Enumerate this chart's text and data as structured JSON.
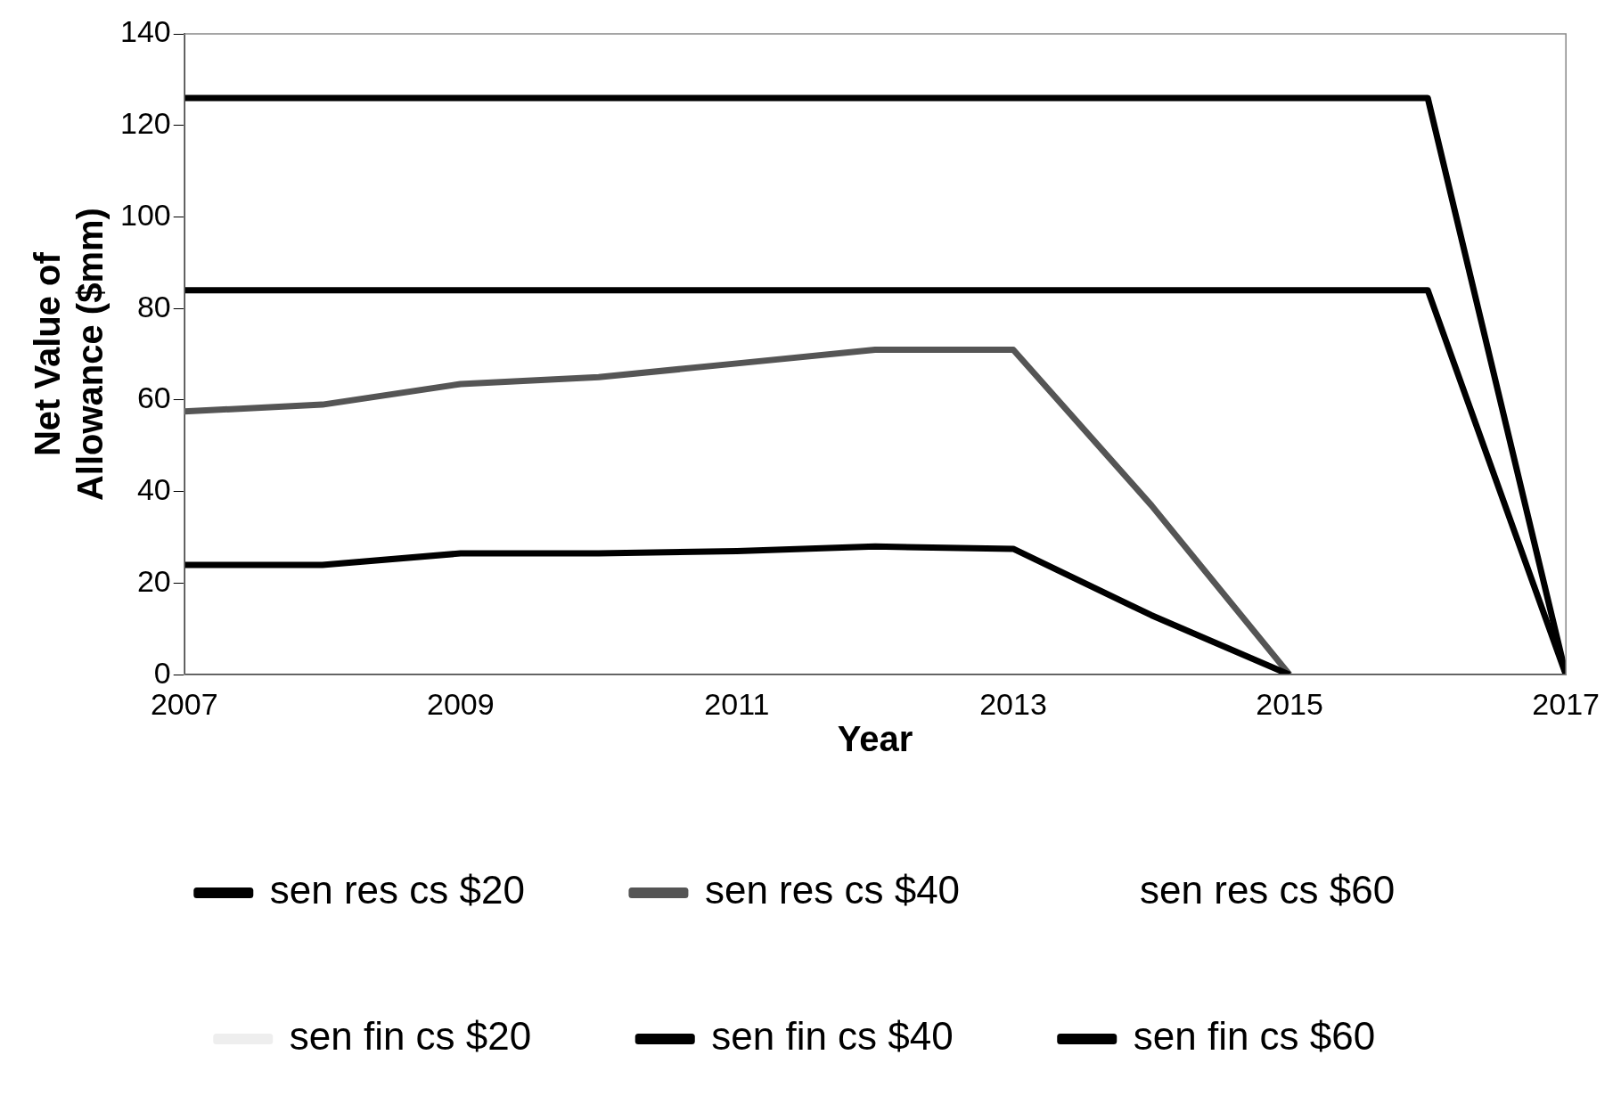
{
  "chart_data": {
    "type": "line",
    "xlabel": "Year",
    "ylabel": "Net Value of Allowance ($mm)",
    "x": [
      2007,
      2008,
      2009,
      2010,
      2011,
      2012,
      2013,
      2014,
      2015,
      2016,
      2017
    ],
    "series": [
      {
        "name": "sen res cs $20",
        "color": "#000000",
        "values": [
          24,
          24,
          26.5,
          26.5,
          27,
          28,
          27.5,
          13,
          0,
          null,
          null
        ]
      },
      {
        "name": "sen res cs $40",
        "color": "#555555",
        "values": [
          57.5,
          59,
          63.5,
          65,
          68,
          71,
          71,
          37,
          0,
          null,
          null
        ]
      },
      {
        "name": "sen res cs $60",
        "values": [
          null,
          null,
          null,
          null,
          null,
          null,
          null,
          null,
          null,
          null,
          null
        ]
      },
      {
        "name": "sen fin cs $20",
        "color": "#eeeeee",
        "values": [
          null,
          null,
          null,
          null,
          null,
          null,
          null,
          null,
          null,
          null,
          null
        ]
      },
      {
        "name": "sen fin cs $40",
        "color": "#000000",
        "values": [
          84,
          84,
          84,
          84,
          84,
          84,
          84,
          84,
          84,
          84,
          0
        ]
      },
      {
        "name": "sen fin cs $60",
        "color": "#000000",
        "values": [
          126,
          126,
          126,
          126,
          126,
          126,
          126,
          126,
          126,
          126,
          0
        ]
      }
    ],
    "xlim": [
      2007,
      2017
    ],
    "xticks": [
      2007,
      2009,
      2011,
      2013,
      2015,
      2017
    ],
    "ylim": [
      0,
      140
    ],
    "yticks": [
      0,
      20,
      40,
      60,
      80,
      100,
      120,
      140
    ],
    "grid": false,
    "legend": "bottom",
    "marker": "none",
    "line_style": "solid"
  }
}
